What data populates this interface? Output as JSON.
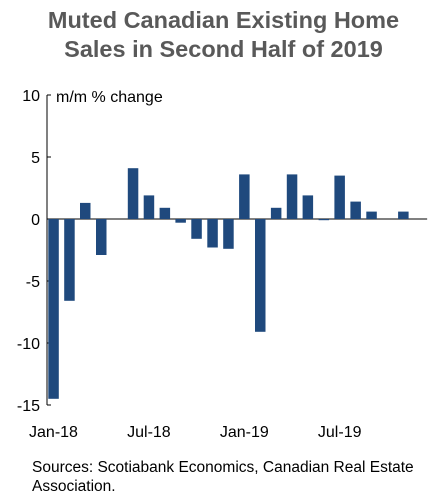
{
  "chart_data": {
    "type": "bar",
    "title_lines": [
      "Muted Canadian Existing Home",
      "Sales in Second Half of 2019"
    ],
    "unit_label": "m/m % change",
    "ylim": [
      -15,
      10
    ],
    "yticks": [
      "10",
      "5",
      "0",
      "-5",
      "-10",
      "-15"
    ],
    "ytick_values": [
      10,
      5,
      0,
      -5,
      -10,
      -15
    ],
    "xtick_labels": [
      {
        "label": "Jan-18",
        "index": 0
      },
      {
        "label": "Jul-18",
        "index": 6
      },
      {
        "label": "Jan-19",
        "index": 12
      },
      {
        "label": "Jul-19",
        "index": 18
      }
    ],
    "categories": [
      "Jan-18",
      "Feb-18",
      "Mar-18",
      "Apr-18",
      "May-18",
      "Jun-18",
      "Jul-18",
      "Aug-18",
      "Sep-18",
      "Oct-18",
      "Nov-18",
      "Dec-18",
      "Jan-19",
      "Feb-19",
      "Mar-19",
      "Apr-19",
      "May-19",
      "Jun-19",
      "Jul-19",
      "Aug-19",
      "Sep-19",
      "Oct-19",
      "Nov-19",
      "Dec-19"
    ],
    "values": [
      -14.5,
      -6.6,
      1.3,
      -2.9,
      null,
      4.1,
      1.9,
      0.9,
      -0.3,
      -1.6,
      -2.3,
      -2.4,
      3.6,
      -9.1,
      0.9,
      3.6,
      1.9,
      -0.1,
      3.5,
      1.4,
      0.6,
      null,
      0.6,
      null
    ],
    "bar_color": "#1F497D",
    "grid": false
  },
  "source_text": "Sources: Scotiabank Economics, Canadian Real Estate Association."
}
